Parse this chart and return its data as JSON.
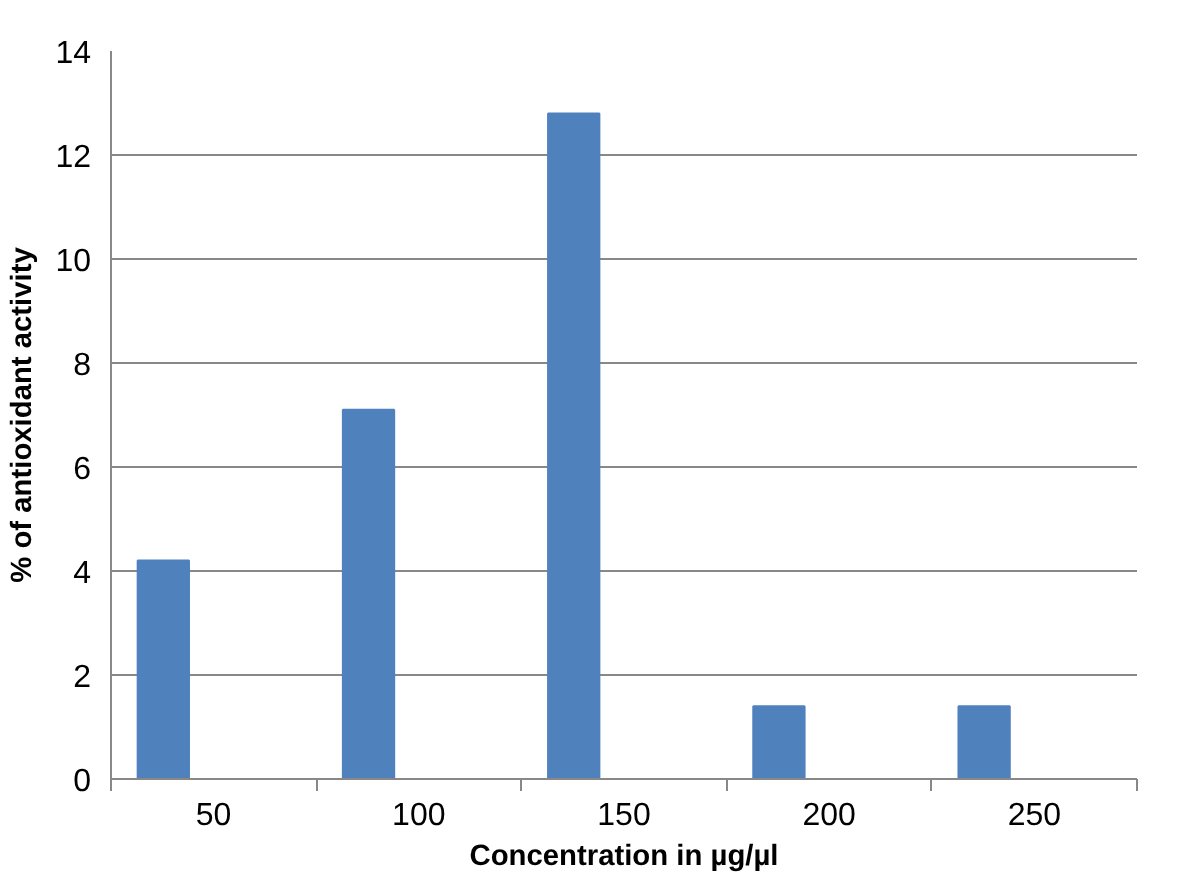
{
  "chart_data": {
    "type": "bar",
    "xlabel": "Concentration in µg/µl",
    "ylabel": "% of antioxidant activity",
    "categories": [
      "50",
      "100",
      "150",
      "200",
      "250"
    ],
    "series": [
      {
        "color": "#4f81bd",
        "values": [
          4.2,
          7.1,
          12.8,
          1.4,
          1.4
        ]
      }
    ],
    "ylim": [
      0,
      14
    ],
    "yticks": [
      0,
      2,
      4,
      6,
      8,
      10,
      12,
      14
    ],
    "grid": "y"
  }
}
